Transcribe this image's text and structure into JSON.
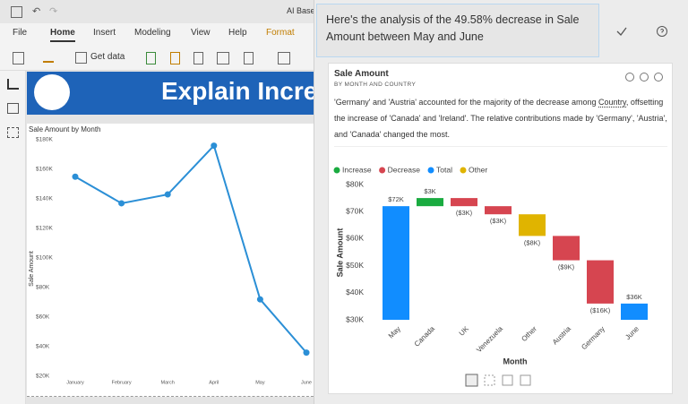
{
  "app": {
    "title": "AI Base",
    "tabs": [
      "File",
      "Home",
      "Insert",
      "Modeling",
      "View",
      "Help",
      "Format"
    ],
    "get_data": "Get data",
    "banner": "Explain Incre"
  },
  "panel": {
    "header": "Here's the analysis of the 49.58% decrease in Sale Amount between May and June",
    "card_title": "Sale Amount",
    "card_subtitle": "BY MONTH AND COUNTRY",
    "description": [
      "'Germany' and 'Austria' accounted for the majority of the decrease among ",
      "Country",
      ", offsetting the increase of 'Canada' and 'Ireland'. The relative contributions made by 'Germany', 'Austria', and 'Canada' changed the most."
    ]
  },
  "chart_data": [
    {
      "type": "line",
      "title": "Sale Amount by Month",
      "y_label": "Sale Amount",
      "color": "#2b8fd6",
      "categories": [
        "January",
        "February",
        "March",
        "April",
        "May",
        "June"
      ],
      "values": [
        155000,
        137000,
        143000,
        176000,
        72000,
        36000
      ],
      "ylim": [
        20000,
        180000
      ],
      "yticks": [
        {
          "value": 20000,
          "label": "$20K"
        },
        {
          "value": 40000,
          "label": "$40K"
        },
        {
          "value": 60000,
          "label": "$60K"
        },
        {
          "value": 80000,
          "label": "$80K"
        },
        {
          "value": 100000,
          "label": "$100K"
        },
        {
          "value": 120000,
          "label": "$120K"
        },
        {
          "value": 140000,
          "label": "$140K"
        },
        {
          "value": 160000,
          "label": "$160K"
        },
        {
          "value": 180000,
          "label": "$180K"
        }
      ]
    },
    {
      "type": "waterfall",
      "x_label": "Month",
      "y_label": "Sale Amount",
      "categories": [
        "May",
        "Canada",
        "UK",
        "Venezuela",
        "Other",
        "Austria",
        "Germany",
        "June"
      ],
      "series": [
        {
          "name": "Increase",
          "color": "#1aab40",
          "values": [
            null,
            3000,
            null,
            null,
            null,
            null,
            null,
            null
          ],
          "value_labels": [
            null,
            "$3K",
            null,
            null,
            null,
            null,
            null,
            null
          ]
        },
        {
          "name": "Decrease",
          "color": "#d64550",
          "values": [
            null,
            null,
            -3000,
            -3000,
            null,
            -9000,
            -16000,
            null
          ],
          "value_labels": [
            null,
            null,
            "($3K)",
            "($3K)",
            null,
            "($9K)",
            "($16K)",
            null
          ]
        },
        {
          "name": "Total",
          "color": "#118dff",
          "is_total": true,
          "values": [
            72000,
            null,
            null,
            null,
            null,
            null,
            null,
            36000
          ],
          "value_labels": [
            "$72K",
            null,
            null,
            null,
            null,
            null,
            null,
            "$36K"
          ]
        },
        {
          "name": "Other",
          "color": "#e0b400",
          "values": [
            null,
            null,
            null,
            null,
            -8000,
            null,
            null,
            null
          ],
          "value_labels": [
            null,
            null,
            null,
            null,
            "($8K)",
            null,
            null,
            null
          ]
        }
      ],
      "ylim": [
        30000,
        80000
      ],
      "yticks": [
        {
          "value": 30000,
          "label": "$30K"
        },
        {
          "value": 40000,
          "label": "$40K"
        },
        {
          "value": 50000,
          "label": "$50K"
        },
        {
          "value": 60000,
          "label": "$60K"
        },
        {
          "value": 70000,
          "label": "$70K"
        },
        {
          "value": 80000,
          "label": "$80K"
        }
      ]
    }
  ]
}
